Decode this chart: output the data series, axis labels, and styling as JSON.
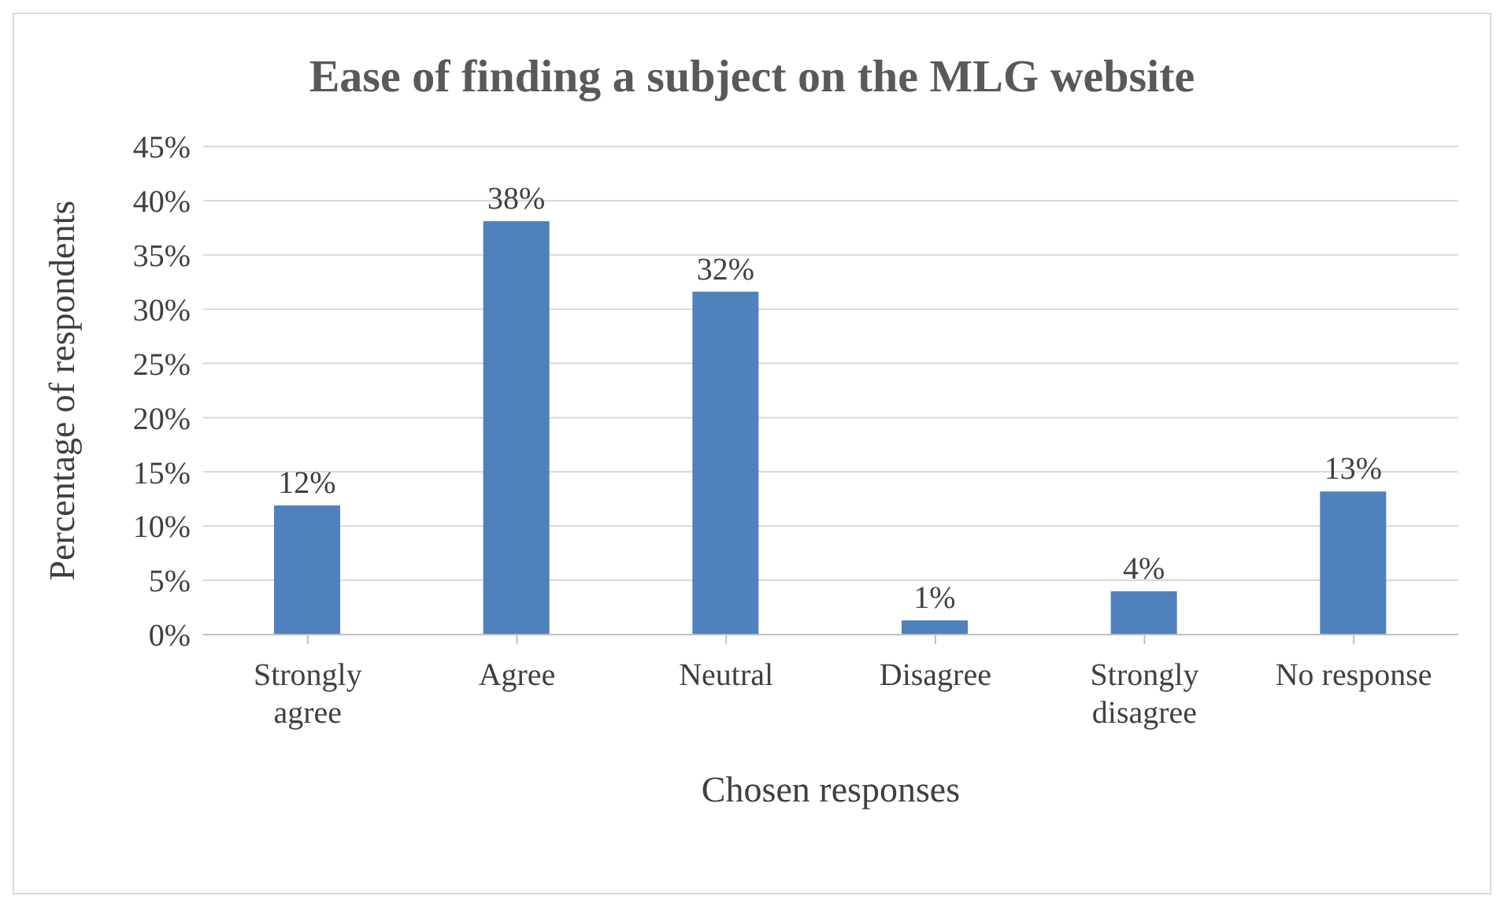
{
  "chart_data": {
    "type": "bar",
    "title": "Ease of finding a subject on the MLG website",
    "xlabel": "Chosen responses",
    "ylabel": "Percentage of respondents",
    "categories": [
      "Strongly agree",
      "Agree",
      "Neutral",
      "Disagree",
      "Strongly disagree",
      "No response"
    ],
    "values": [
      11.9,
      38.1,
      31.6,
      1.3,
      4.0,
      13.2
    ],
    "color": "#4f81bd",
    "value_labels": [
      "12%",
      "38%",
      "32%",
      "1%",
      "4%",
      "13%"
    ],
    "ylim": [
      0,
      45
    ],
    "yticks": [
      {
        "value": 0,
        "label": "0%"
      },
      {
        "value": 5,
        "label": "5%"
      },
      {
        "value": 10,
        "label": "10%"
      },
      {
        "value": 15,
        "label": "15%"
      },
      {
        "value": 20,
        "label": "20%"
      },
      {
        "value": 25,
        "label": "25%"
      },
      {
        "value": 30,
        "label": "30%"
      },
      {
        "value": 35,
        "label": "35%"
      },
      {
        "value": 40,
        "label": "40%"
      },
      {
        "value": 45,
        "label": "45%"
      }
    ],
    "grid": "y",
    "legend": false
  }
}
